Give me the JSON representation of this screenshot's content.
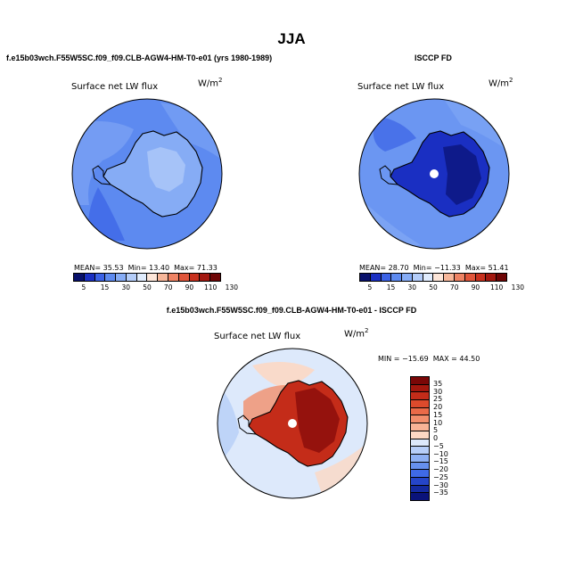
{
  "title": "JJA",
  "panels": [
    {
      "id": "model",
      "case_title": "f.e15b03wch.F55W5SC.f09_f09.CLB-AGW4-HM-T0-e01 (yrs 1980-1989)",
      "label": "Surface net LW flux",
      "units": "W/m",
      "units_exp": "2",
      "mean_label": "MEAN=",
      "mean": "35.53",
      "min_label": "Min=",
      "min": "13.40",
      "max_label": "Max=",
      "max": "71.33"
    },
    {
      "id": "obs",
      "case_title": "ISCCP FD",
      "label": "Surface net LW flux",
      "units": "W/m",
      "units_exp": "2",
      "mean_label": "MEAN=",
      "mean": "28.70",
      "min_label": "Min=",
      "min": "−11.33",
      "max_label": "Max=",
      "max": "51.41"
    },
    {
      "id": "diff",
      "case_title": "f.e15b03wch.F55W5SC.f09_f09.CLB-AGW4-HM-T0-e01 - ISCCP FD",
      "label": "Surface net LW flux",
      "units": "W/m",
      "units_exp": "2",
      "min_label": "MIN =",
      "min": "−15.69",
      "max_label": "MAX =",
      "max": "44.50"
    }
  ],
  "colorbar_abs": {
    "ticks": [
      "5",
      "15",
      "30",
      "50",
      "70",
      "90",
      "110",
      "130"
    ],
    "colors": [
      "#08106b",
      "#1a2fc2",
      "#3b62e6",
      "#5d8af0",
      "#86acf5",
      "#b4cdf9",
      "#e0ecfd",
      "#fde6d9",
      "#f7b79a",
      "#ee8364",
      "#e0553a",
      "#c8301d",
      "#a3170e",
      "#6e0505"
    ]
  },
  "colorbar_diff": {
    "labels": [
      "35",
      "30",
      "25",
      "20",
      "15",
      "10",
      "5",
      "0",
      "−5",
      "−10",
      "−15",
      "−20",
      "−25",
      "−30",
      "−35"
    ],
    "colors": [
      "#7a0707",
      "#a3170e",
      "#c42c19",
      "#dc4a2c",
      "#ea6a48",
      "#f28e6c",
      "#f8b396",
      "#fcd8c4",
      "#dde9fb",
      "#b7cef8",
      "#8eb0f3",
      "#6690ee",
      "#3f6ae6",
      "#2545c9",
      "#142aa0",
      "#0a137a"
    ]
  },
  "colors": {
    "ocean_model": "#5d8af0",
    "ocean_light": "#86acf5",
    "ocean_obs": "#6b96f2",
    "land_model": "#86acf5",
    "land_obs_dark": "#1a2fc2",
    "diff_ocean": "#dde9fb",
    "diff_land": "#c42c19",
    "diff_land_dark": "#8a0c0a"
  }
}
